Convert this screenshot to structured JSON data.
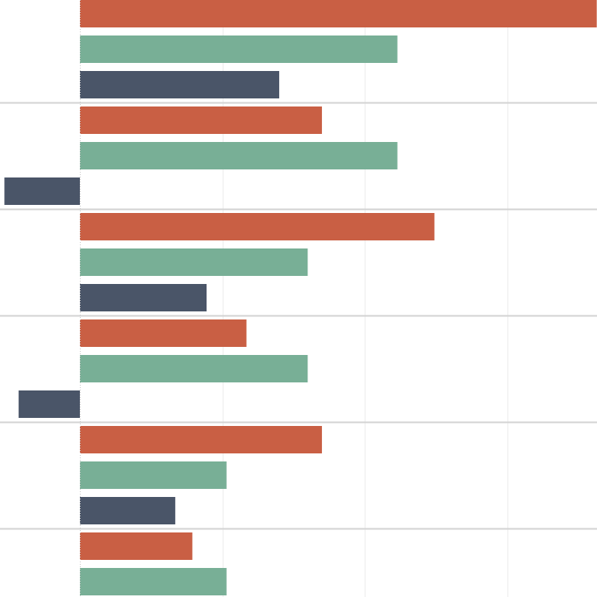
{
  "chart_data": {
    "type": "bar",
    "orientation": "horizontal",
    "title": "",
    "xlabel": "",
    "ylabel": "",
    "grid": true,
    "xlim": [
      -0.53,
      3.63
    ],
    "colors": {
      "red": "#c95f44",
      "green": "#78af96",
      "navy": "#4a5568"
    },
    "groups": [
      {
        "bars": [
          {
            "value": 3.63,
            "color": "#c95f44"
          },
          {
            "value": 2.23,
            "color": "#78af96"
          },
          {
            "value": 1.4,
            "color": "#4a5568"
          }
        ]
      },
      {
        "bars": [
          {
            "value": 1.7,
            "color": "#c95f44"
          },
          {
            "value": 2.23,
            "color": "#78af96"
          },
          {
            "value": -0.53,
            "color": "#4a5568"
          }
        ]
      },
      {
        "bars": [
          {
            "value": 2.49,
            "color": "#c95f44"
          },
          {
            "value": 1.6,
            "color": "#78af96"
          },
          {
            "value": 0.89,
            "color": "#4a5568"
          }
        ]
      },
      {
        "bars": [
          {
            "value": 1.17,
            "color": "#c95f44"
          },
          {
            "value": 1.6,
            "color": "#78af96"
          },
          {
            "value": -0.43,
            "color": "#4a5568"
          }
        ]
      },
      {
        "bars": [
          {
            "value": 1.7,
            "color": "#c95f44"
          },
          {
            "value": 1.03,
            "color": "#78af96"
          },
          {
            "value": 0.67,
            "color": "#4a5568"
          }
        ]
      },
      {
        "bars": [
          {
            "value": 0.79,
            "color": "#c95f44"
          },
          {
            "value": 1.03,
            "color": "#78af96"
          }
        ]
      }
    ]
  }
}
